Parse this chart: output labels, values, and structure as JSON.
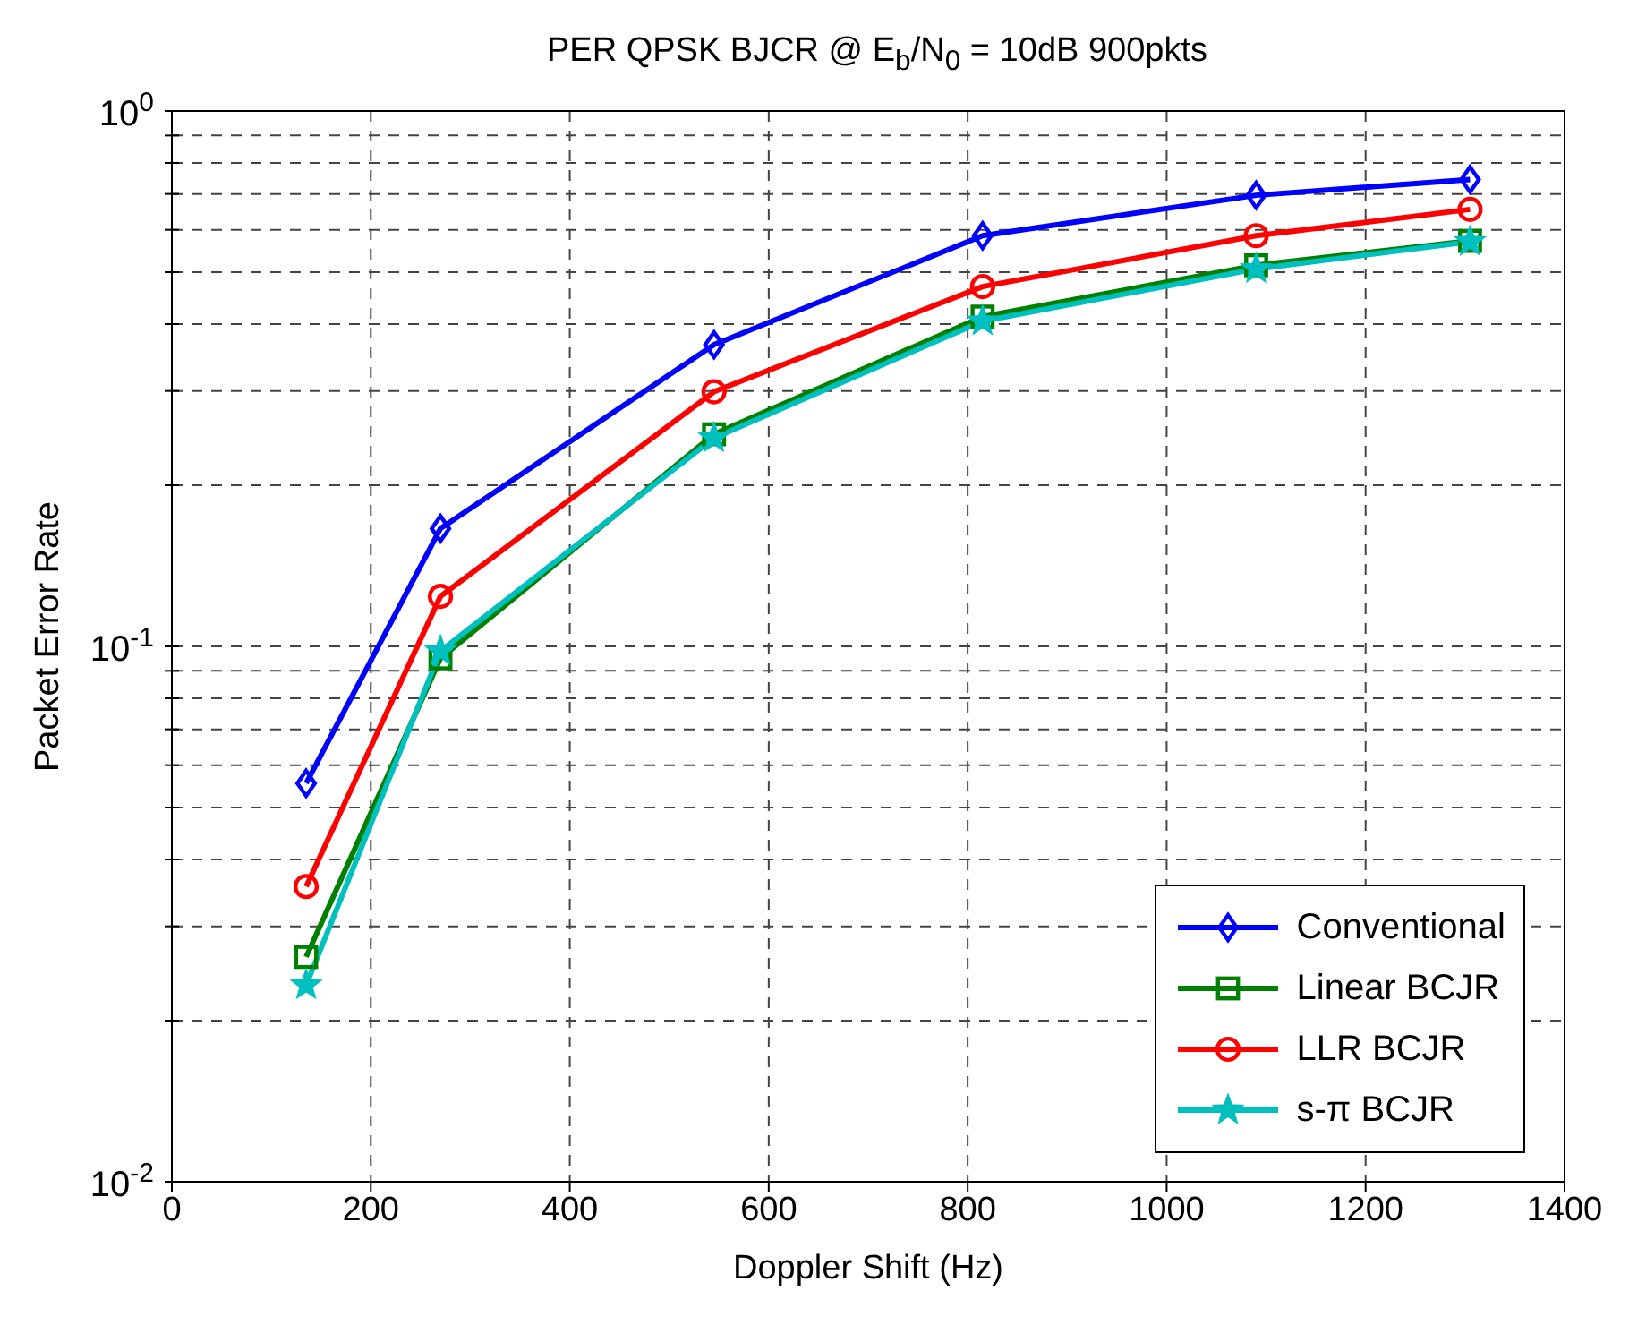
{
  "chart_data": {
    "type": "line",
    "title": "PER QPSK BJCR @ E$_{b}$/N$_{0}$ = 10dB 900pkts",
    "xlabel": "Doppler Shift (Hz)",
    "ylabel": "Packet Error Rate",
    "log": "y",
    "grid": true,
    "legend": "bottom right",
    "line_style": "solid",
    "x": [
      135,
      270,
      545,
      815,
      1090,
      1305
    ],
    "xlim": [
      0,
      1400
    ],
    "xticks": [
      0,
      200,
      400,
      600,
      800,
      1000,
      1200,
      1400
    ],
    "ylim": [
      0.01,
      1
    ],
    "yticks": [
      {
        "value": 0.01,
        "label": "10$^{-2}$"
      },
      {
        "value": 0.02,
        "label": null
      },
      {
        "value": 0.03,
        "label": null
      },
      {
        "value": 0.04,
        "label": null
      },
      {
        "value": 0.05,
        "label": null
      },
      {
        "value": 0.06,
        "label": null
      },
      {
        "value": 0.07,
        "label": null
      },
      {
        "value": 0.08,
        "label": null
      },
      {
        "value": 0.09,
        "label": null
      },
      {
        "value": 0.1,
        "label": "10$^{-1}$"
      },
      {
        "value": 0.2,
        "label": null
      },
      {
        "value": 0.3,
        "label": null
      },
      {
        "value": 0.4,
        "label": null
      },
      {
        "value": 0.5,
        "label": null
      },
      {
        "value": 0.6,
        "label": null
      },
      {
        "value": 0.7,
        "label": null
      },
      {
        "value": 0.8,
        "label": null
      },
      {
        "value": 0.9,
        "label": null
      },
      {
        "value": 1,
        "label": "10$^{0}$"
      }
    ],
    "series": [
      {
        "name": "Conventional",
        "color": "#0000ff",
        "marker": "diamond",
        "values": [
          0.0555,
          0.166,
          0.366,
          0.585,
          0.696,
          0.745
        ]
      },
      {
        "name": "Linear BCJR",
        "color": "#008000",
        "marker": "square",
        "values": [
          0.0263,
          0.095,
          0.249,
          0.413,
          0.515,
          0.572
        ]
      },
      {
        "name": "LLR BCJR",
        "color": "#ff0000",
        "marker": "circle",
        "values": [
          0.0356,
          0.124,
          0.299,
          0.47,
          0.585,
          0.655
        ]
      },
      {
        "name": "s-π BCJR",
        "color": "#00bfbf",
        "marker": "star",
        "values": [
          0.0233,
          0.098,
          0.245,
          0.405,
          0.507,
          0.57
        ]
      }
    ]
  }
}
